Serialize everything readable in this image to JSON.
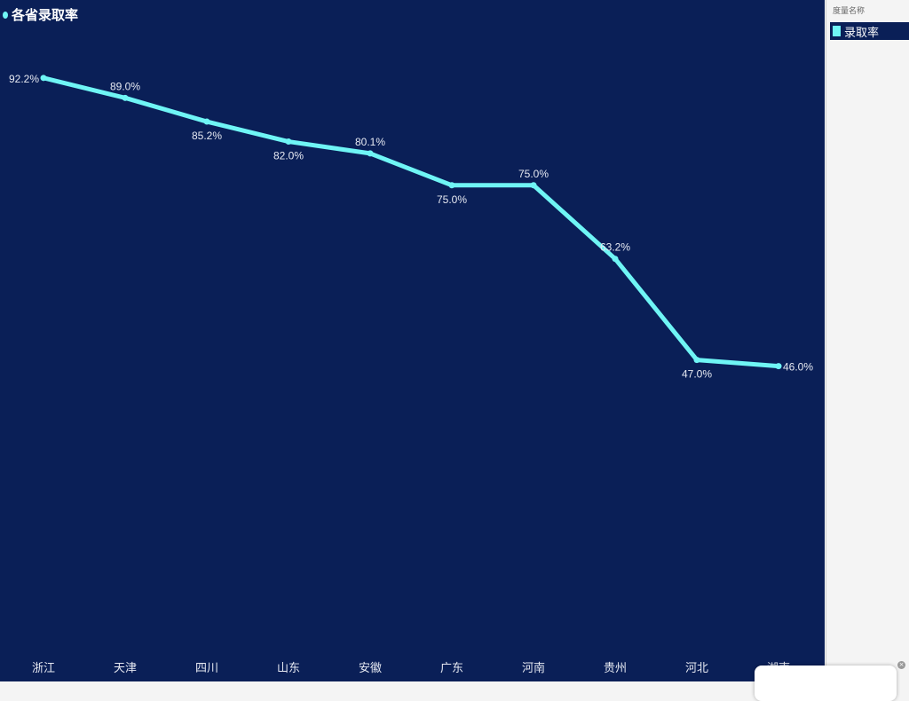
{
  "chart_data": {
    "type": "line",
    "title": "各省录取率",
    "categories": [
      "浙江",
      "天津",
      "四川",
      "山东",
      "安徽",
      "广东",
      "河南",
      "贵州",
      "河北",
      "湖南"
    ],
    "series": [
      {
        "name": "录取率",
        "values": [
          92.2,
          89.0,
          85.2,
          82.0,
          80.1,
          75.0,
          75.0,
          63.2,
          47.0,
          46.0
        ],
        "color": "#6ff5f5"
      }
    ],
    "data_labels": [
      "92.2%",
      "89.0%",
      "85.2%",
      "82.0%",
      "80.1%",
      "75.0%",
      "75.0%",
      "63.2%",
      "47.0%",
      "46.0%"
    ],
    "label_placement": [
      "left",
      "top",
      "bottom",
      "bottom",
      "top",
      "bottom",
      "top",
      "top",
      "bottom",
      "right"
    ],
    "ylim": [
      0,
      100
    ],
    "grid": false,
    "legend_placement": "right"
  },
  "legend": {
    "header": "度量名称",
    "item": "录取率"
  },
  "colors": {
    "background": "#0a1f57",
    "line": "#6ff5f5"
  }
}
